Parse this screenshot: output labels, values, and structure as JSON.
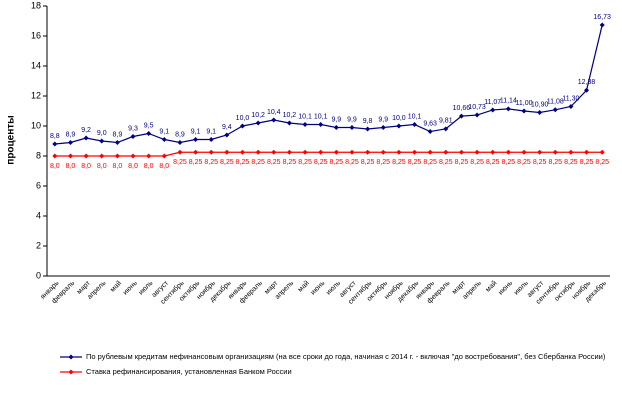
{
  "chart_data": {
    "type": "line",
    "y_label": "проценты",
    "categories": [
      "январь",
      "февраль",
      "март",
      "апрель",
      "май",
      "июнь",
      "июль",
      "август",
      "сентябрь",
      "октябрь",
      "ноябрь",
      "декабрь",
      "январь",
      "февраль",
      "март",
      "апрель",
      "май",
      "июнь",
      "июль",
      "август",
      "сентябрь",
      "октябрь",
      "ноябрь",
      "декабрь",
      "январь",
      "февраль",
      "март",
      "апрель",
      "май",
      "июнь",
      "июль",
      "август",
      "сентябрь",
      "октябрь",
      "ноябрь",
      "декабрь"
    ],
    "series": [
      {
        "name": "По рублевым кредитам нефинансовым организациям (на все сроки до года, начиная с 2014 г. - включая \"до востребования\", без Сбербанка России)",
        "color": "#000080",
        "values": [
          8.8,
          8.9,
          9.2,
          9.0,
          8.9,
          9.3,
          9.5,
          9.1,
          8.9,
          9.1,
          9.1,
          9.4,
          10.0,
          10.2,
          10.4,
          10.2,
          10.1,
          10.1,
          9.9,
          9.9,
          9.8,
          9.9,
          10.0,
          10.1,
          9.63,
          9.81,
          10.66,
          10.73,
          11.07,
          11.14,
          11.0,
          10.9,
          11.08,
          11.3,
          12.38,
          16.73
        ],
        "value_labels": [
          "8,8",
          "8,9",
          "9,2",
          "9,0",
          "8,9",
          "9,3",
          "9,5",
          "9,1",
          "8,9",
          "9,1",
          "9,1",
          "9,4",
          "10,0",
          "10,2",
          "10,4",
          "10,2",
          "10,1",
          "10,1",
          "9,9",
          "9,9",
          "9,8",
          "9,9",
          "10,0",
          "10,1",
          "9,63",
          "9,81",
          "10,66",
          "10,73",
          "11,07",
          "11,14",
          "11,00",
          "10,90",
          "11,08",
          "11,30",
          "12,38",
          "16,73"
        ]
      },
      {
        "name": "Ставка рефинансирования, установленная Банком России",
        "color": "#ff0000",
        "values": [
          8.0,
          8.0,
          8.0,
          8.0,
          8.0,
          8.0,
          8.0,
          8.0,
          8.25,
          8.25,
          8.25,
          8.25,
          8.25,
          8.25,
          8.25,
          8.25,
          8.25,
          8.25,
          8.25,
          8.25,
          8.25,
          8.25,
          8.25,
          8.25,
          8.25,
          8.25,
          8.25,
          8.25,
          8.25,
          8.25,
          8.25,
          8.25,
          8.25,
          8.25,
          8.25,
          8.25
        ],
        "value_labels": [
          "8,0",
          "8,0",
          "8,0",
          "8,0",
          "8,0",
          "8,0",
          "8,0",
          "8,0",
          "8,25",
          "8,25",
          "8,25",
          "8,25",
          "8,25",
          "8,25",
          "8,25",
          "8,25",
          "8,25",
          "8,25",
          "8,25",
          "8,25",
          "8,25",
          "8,25",
          "8,25",
          "8,25",
          "8,25",
          "8,25",
          "8,25",
          "8,25",
          "8,25",
          "8,25",
          "8,25",
          "8,25",
          "8,25",
          "8,25",
          "8,25",
          "8,25"
        ]
      }
    ],
    "ylim": [
      0,
      18
    ],
    "yticks": [
      0,
      2,
      4,
      6,
      8,
      10,
      12,
      14,
      16,
      18
    ],
    "grid": false
  }
}
